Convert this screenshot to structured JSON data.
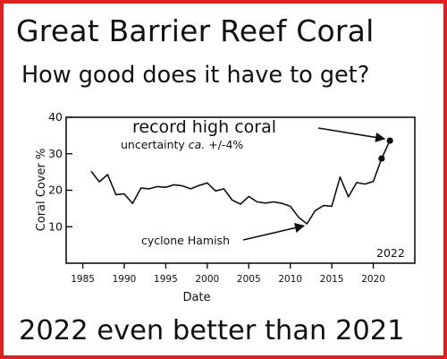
{
  "headline": {
    "title": "Great Barrier Reef Coral",
    "subtitle": "How good does it have to get?",
    "footer": "2022 even better than 2021"
  },
  "colors": {
    "border": "#e0201e",
    "ink": "#111111",
    "background": "#ffffff"
  },
  "chart_data": {
    "type": "line",
    "title": "",
    "xlabel": "Date",
    "ylabel": "Coral Cover %",
    "xlim": [
      1983,
      2025
    ],
    "ylim": [
      0,
      40
    ],
    "xticks": [
      1985,
      1990,
      1995,
      2000,
      2005,
      2010,
      2015,
      2020
    ],
    "yticks": [
      10,
      20,
      30,
      40
    ],
    "grid": false,
    "legend": "none",
    "x": [
      1986,
      1987,
      1988,
      1989,
      1990,
      1991,
      1992,
      1993,
      1994,
      1995,
      1996,
      1997,
      1998,
      1999,
      2000,
      2001,
      2002,
      2003,
      2004,
      2005,
      2006,
      2007,
      2008,
      2009,
      2010,
      2011,
      2012,
      2013,
      2014,
      2015,
      2016,
      2017,
      2018,
      2019,
      2020,
      2021,
      2022
    ],
    "y": [
      25.2,
      22.3,
      24.3,
      18.8,
      19.0,
      16.4,
      20.6,
      20.4,
      21.0,
      20.8,
      21.5,
      21.2,
      20.4,
      21.3,
      22.0,
      19.8,
      20.4,
      17.3,
      16.2,
      18.3,
      16.8,
      16.5,
      16.8,
      16.4,
      15.6,
      12.6,
      10.8,
      14.4,
      15.8,
      15.6,
      23.6,
      18.2,
      22.1,
      21.7,
      22.4,
      28.7,
      33.6
    ],
    "highlighted_points": [
      {
        "x": 2021,
        "y": 28.7
      },
      {
        "x": 2022,
        "y": 33.6
      }
    ],
    "annotations": [
      {
        "text": "record high coral",
        "target": {
          "x": 2022,
          "y": 33.6
        }
      },
      {
        "text": "uncertainty ca. +/-4%"
      },
      {
        "text": "cyclone Hamish",
        "target": {
          "x": 2011,
          "y": 10.5
        }
      },
      {
        "text": "2022"
      }
    ],
    "uncertainty": {
      "prefix": "uncertainty ",
      "italic": "ca.",
      "suffix": " +/-4%"
    }
  }
}
